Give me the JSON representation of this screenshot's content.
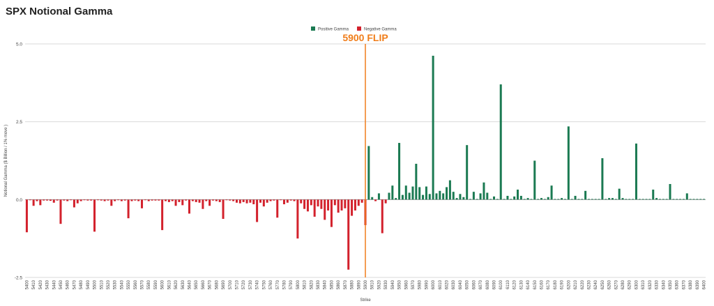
{
  "chart_data": {
    "type": "bar",
    "title": "SPX Notional Gamma",
    "xlabel": "Strike",
    "ylabel": "Notional Gamma ($ Billion / 1% move )",
    "ylim": [
      -2.5,
      5.0
    ],
    "y_ticks": [
      "-2.5",
      "0.0",
      "2.5",
      "5.0"
    ],
    "grid": true,
    "legend_position": "top-center",
    "colors": {
      "positive": "#1b7a52",
      "negative": "#d3212c",
      "flip": "#f07d1a"
    },
    "series": [
      {
        "name": "Positive Gamma"
      },
      {
        "name": "Negative Gamma"
      }
    ],
    "flip": {
      "strike": 5900,
      "label": "5900 FLIP"
    },
    "strike_start": 5400,
    "strike_step": 5,
    "x_tick_labels": [
      "5400",
      "5410",
      "5420",
      "5430",
      "5440",
      "5450",
      "5460",
      "5470",
      "5480",
      "5490",
      "5500",
      "5510",
      "5520",
      "5530",
      "5540",
      "5550",
      "5560",
      "5570",
      "5580",
      "5590",
      "5600",
      "5610",
      "5620",
      "5630",
      "5640",
      "5650",
      "5660",
      "5670",
      "5680",
      "5690",
      "5700",
      "5710",
      "5720",
      "5730",
      "5740",
      "5750",
      "5760",
      "5770",
      "5780",
      "5790",
      "5800",
      "5810",
      "5820",
      "5830",
      "5840",
      "5850",
      "5860",
      "5870",
      "5880",
      "5890",
      "5900",
      "5910",
      "5920",
      "5930",
      "5940",
      "5950",
      "5960",
      "5970",
      "5980",
      "5990",
      "6000",
      "6010",
      "6020",
      "6030",
      "6040",
      "6050",
      "6060",
      "6070",
      "6080",
      "6090",
      "6100",
      "6110",
      "6120",
      "6130",
      "6140",
      "6150",
      "6160",
      "6170",
      "6180",
      "6190",
      "6200",
      "6210",
      "6220",
      "6230",
      "6240",
      "6250",
      "6260",
      "6270",
      "6280",
      "6290",
      "6300",
      "6310",
      "6320",
      "6330",
      "6340",
      "6350",
      "6360",
      "6370",
      "6380",
      "6390",
      "6400"
    ],
    "values": [
      -1.05,
      -0.02,
      -0.2,
      -0.05,
      -0.18,
      -0.03,
      -0.03,
      -0.04,
      -0.1,
      -0.03,
      -0.78,
      -0.03,
      -0.05,
      -0.02,
      -0.25,
      -0.12,
      -0.05,
      -0.02,
      -0.03,
      -0.03,
      -1.03,
      -0.02,
      -0.03,
      -0.05,
      -0.03,
      -0.2,
      -0.05,
      -0.02,
      -0.05,
      -0.03,
      -0.6,
      -0.05,
      -0.03,
      -0.05,
      -0.28,
      -0.02,
      -0.05,
      -0.03,
      -0.03,
      -0.03,
      -0.98,
      -0.05,
      -0.08,
      -0.05,
      -0.2,
      -0.08,
      -0.18,
      -0.03,
      -0.45,
      -0.05,
      -0.08,
      -0.1,
      -0.3,
      -0.05,
      -0.2,
      -0.03,
      -0.05,
      -0.08,
      -0.62,
      -0.02,
      -0.03,
      -0.05,
      -0.1,
      -0.12,
      -0.08,
      -0.12,
      -0.1,
      -0.15,
      -0.72,
      -0.1,
      -0.22,
      -0.1,
      -0.05,
      -0.03,
      -0.58,
      -0.02,
      -0.15,
      -0.1,
      -0.03,
      -0.05,
      -1.25,
      -0.12,
      -0.3,
      -0.38,
      -0.18,
      -0.55,
      -0.22,
      -0.3,
      -0.65,
      -0.35,
      -0.88,
      -0.18,
      -0.42,
      -0.35,
      -0.28,
      -2.25,
      -0.52,
      -0.35,
      -0.2,
      -0.1,
      -0.82,
      1.72,
      0.08,
      -0.05,
      0.2,
      -1.08,
      -0.12,
      0.22,
      0.45,
      0.05,
      1.82,
      0.15,
      0.45,
      0.22,
      0.42,
      1.15,
      0.4,
      0.15,
      0.42,
      0.18,
      4.62,
      0.2,
      0.28,
      0.2,
      0.4,
      0.62,
      0.25,
      0.05,
      0.18,
      0.08,
      1.75,
      0.02,
      0.25,
      0.02,
      0.2,
      0.55,
      0.22,
      0.02,
      0.1,
      0.02,
      3.7,
      0.02,
      0.12,
      0.02,
      0.1,
      0.32,
      0.12,
      0.02,
      0.05,
      0.02,
      1.25,
      0.02,
      0.05,
      0.02,
      0.08,
      0.45,
      0.02,
      0.02,
      0.05,
      0.02,
      2.35,
      0.02,
      0.12,
      0.02,
      0.02,
      0.28,
      0.02,
      0.02,
      0.02,
      0.02,
      1.33,
      0.02,
      0.05,
      0.05,
      0.02,
      0.35,
      0.05,
      0.02,
      0.02,
      0.02,
      1.8,
      0.02,
      0.02,
      0.02,
      0.02,
      0.32,
      0.05,
      0.02,
      0.02,
      0.02,
      0.5,
      0.02,
      0.02,
      0.02,
      0.02,
      0.2,
      0.02,
      0.02,
      0.02,
      0.02,
      0.02
    ]
  }
}
